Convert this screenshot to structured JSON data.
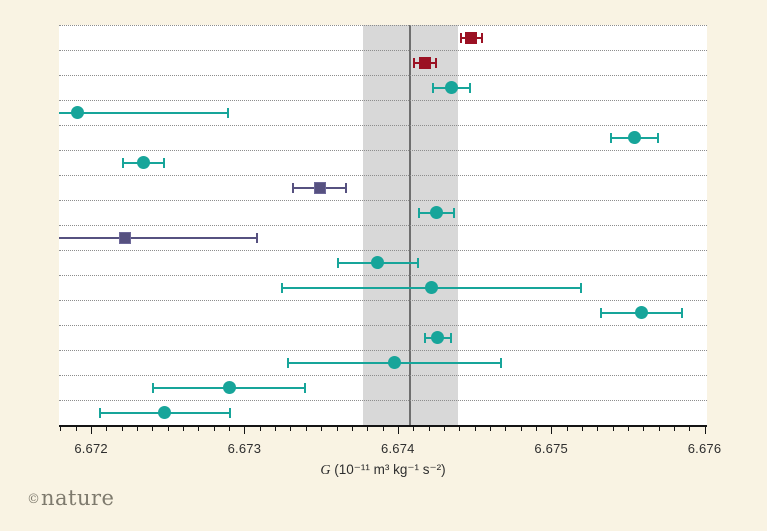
{
  "background_color": "#f9f3e3",
  "logo": {
    "copyright": "©",
    "name": "nature"
  },
  "axis": {
    "title_symbol": "G",
    "title_units": " (10⁻¹¹ m³ kg⁻¹ s⁻²)"
  },
  "chart_data": {
    "type": "scatter",
    "orientation": "horizontal-dot-plot",
    "title": "",
    "xlabel": "G (10⁻¹¹ m³ kg⁻¹ s⁻²)",
    "ylabel": "",
    "xlim": [
      6.671791,
      6.676016
    ],
    "x_major_ticks": [
      6.672,
      6.673,
      6.674,
      6.675,
      6.676
    ],
    "x_tick_labels": [
      "6.672",
      "6.673",
      "6.674",
      "6.675",
      "6.676"
    ],
    "x_minor_step": 0.0001,
    "x_minor_start": 6.6718,
    "grid": "horizontal-dotted",
    "legend": "none",
    "reference_band": {
      "min": 6.67377,
      "max": 6.67439,
      "center_line": 6.67408,
      "band_color": "#d8d8d8",
      "line_color": "#6f6f6f"
    },
    "colors": {
      "teal": "#17a59a",
      "dark_red": "#9b1123",
      "purple": "#565180",
      "purple_border": "#6d6899"
    },
    "points": [
      {
        "row": 1,
        "value": 6.67448,
        "uncertainty": 7.8e-05,
        "marker": "square",
        "color": "dark_red"
      },
      {
        "row": 2,
        "value": 6.67418,
        "uncertainty": 7.8e-05,
        "marker": "square",
        "color": "dark_red"
      },
      {
        "row": 3,
        "value": 6.67435,
        "uncertainty": 0.00013,
        "marker": "circle",
        "color": "teal"
      },
      {
        "row": 4,
        "value": 6.67191,
        "uncertainty": 0.00099,
        "marker": "circle",
        "color": "teal"
      },
      {
        "row": 5,
        "value": 6.67554,
        "uncertainty": 0.00016,
        "marker": "circle",
        "color": "teal"
      },
      {
        "row": 6,
        "value": 6.67234,
        "uncertainty": 0.00014,
        "marker": "circle",
        "color": "teal"
      },
      {
        "row": 7,
        "value": 6.67349,
        "uncertainty": 0.00018,
        "marker": "square",
        "color": "purple"
      },
      {
        "row": 8,
        "value": 6.67425,
        "uncertainty": 0.00012,
        "marker": "circle",
        "color": "teal"
      },
      {
        "row": 9,
        "value": 6.67222,
        "uncertainty": 0.00087,
        "marker": "square",
        "color": "purple"
      },
      {
        "row": 10,
        "value": 6.67387,
        "uncertainty": 0.00027,
        "marker": "circle",
        "color": "teal"
      },
      {
        "row": 11,
        "value": 6.67422,
        "uncertainty": 0.00098,
        "marker": "circle",
        "color": "teal"
      },
      {
        "row": 12,
        "value": 6.67559,
        "uncertainty": 0.00027,
        "marker": "circle",
        "color": "teal"
      },
      {
        "row": 13,
        "value": 6.67426,
        "uncertainty": 9.2e-05,
        "marker": "circle",
        "color": "teal"
      },
      {
        "row": 14,
        "value": 6.67398,
        "uncertainty": 0.0007,
        "marker": "circle",
        "color": "teal"
      },
      {
        "row": 15,
        "value": 6.6729,
        "uncertainty": 0.0005,
        "marker": "circle",
        "color": "teal"
      },
      {
        "row": 16,
        "value": 6.67248,
        "uncertainty": 0.00043,
        "marker": "circle",
        "color": "teal"
      }
    ]
  }
}
